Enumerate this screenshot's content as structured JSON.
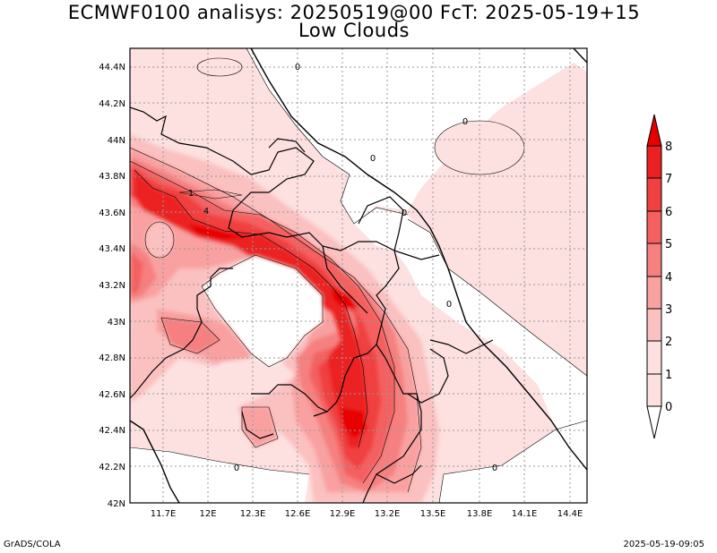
{
  "title_line1": "ECMWF0100 analisys: 20250519@00 FcT: 2025-05-19+15",
  "title_line2": "Low Clouds",
  "footer_left": "GrADS/COLA",
  "footer_right": "2025-05-19-09:05",
  "map": {
    "lon_labels": [
      "11.7E",
      "12E",
      "12.3E",
      "12.6E",
      "12.9E",
      "13.2E",
      "13.5E",
      "13.8E",
      "14.1E",
      "14.4E"
    ],
    "lat_labels": [
      "44.4N",
      "44.2N",
      "44N",
      "43.8N",
      "43.6N",
      "43.4N",
      "43.2N",
      "43N",
      "42.8N",
      "42.6N",
      "42.4N",
      "42.2N",
      "42N"
    ],
    "contour_labels": [
      "0",
      "0",
      "0",
      "0",
      "0",
      "0",
      "0",
      "1",
      "4"
    ]
  },
  "colorbar": {
    "levels": [
      "0",
      "1",
      "2",
      "3",
      "4",
      "5",
      "6",
      "7",
      "8"
    ],
    "colors": [
      "#ffffff",
      "#fde0e0",
      "#fbc0c0",
      "#f9a0a0",
      "#f68080",
      "#f46060",
      "#f04040",
      "#ec2020",
      "#e80000"
    ]
  }
}
